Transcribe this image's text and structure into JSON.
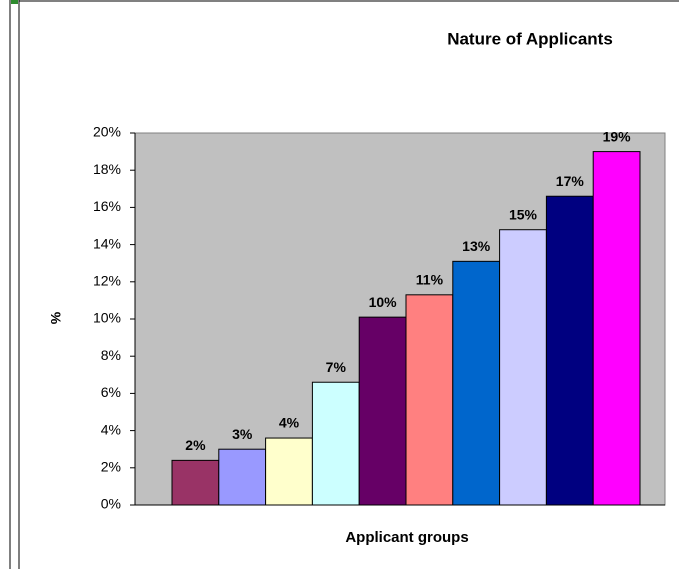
{
  "chart_data": {
    "type": "bar",
    "title": "Nature of Applicants",
    "x_label": "Applicant groups",
    "y_label": "%",
    "categories": [
      null,
      null,
      null,
      null,
      null,
      null,
      null,
      null,
      null,
      null
    ],
    "values": [
      2.4,
      3.0,
      3.6,
      6.6,
      10.1,
      11.3,
      13.1,
      14.8,
      16.6,
      19.0
    ],
    "value_labels": [
      "2%",
      "3%",
      "4%",
      "7%",
      "10%",
      "11%",
      "13%",
      "15%",
      "17%",
      "19%"
    ],
    "colors": [
      "#993366",
      "#9999ff",
      "#ffffcc",
      "#ccffff",
      "#660066",
      "#ff8080",
      "#0066cc",
      "#ccccff",
      "#000080",
      "#ff00ff"
    ],
    "ylim": [
      0,
      20
    ],
    "yticks": [
      {
        "value": 0,
        "label": "0%"
      },
      {
        "value": 2,
        "label": "2%"
      },
      {
        "value": 4,
        "label": "4%"
      },
      {
        "value": 6,
        "label": "6%"
      },
      {
        "value": 8,
        "label": "8%"
      },
      {
        "value": 10,
        "label": "10%"
      },
      {
        "value": 12,
        "label": "12%"
      },
      {
        "value": 14,
        "label": "14%"
      },
      {
        "value": 16,
        "label": "16%"
      },
      {
        "value": 18,
        "label": "18%"
      },
      {
        "value": 20,
        "label": "20%"
      }
    ],
    "plot_background": "#c0c0c0",
    "grid": false
  }
}
